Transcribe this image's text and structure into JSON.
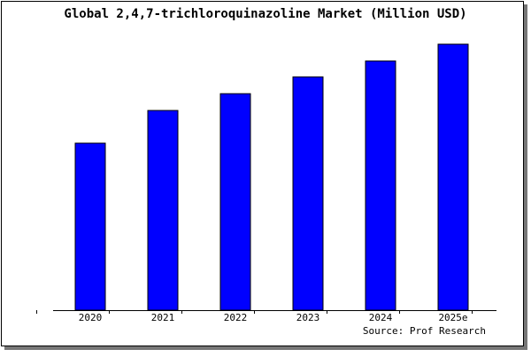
{
  "chart_data": {
    "type": "bar",
    "title": "Global 2,4,7-trichloroquinazoline Market (Million USD)",
    "categories": [
      "2020",
      "2021",
      "2022",
      "2023",
      "2024",
      "2025e"
    ],
    "values": [
      189,
      226,
      245,
      264,
      282,
      301
    ],
    "color": "#0000ff",
    "ylim": [
      0,
      311
    ],
    "source": "Source: Prof Research"
  }
}
